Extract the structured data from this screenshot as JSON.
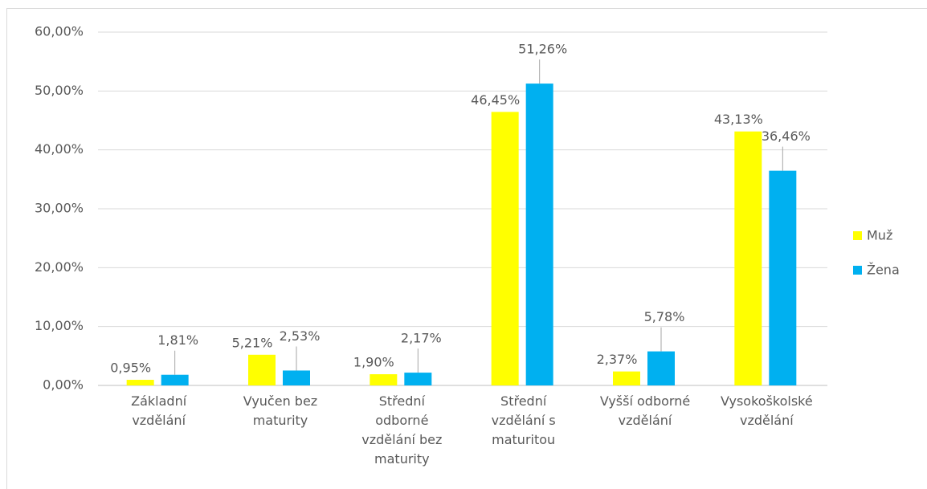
{
  "chart_data": {
    "type": "bar",
    "categories": [
      "Základní vzdělání",
      "Vyučen bez maturity",
      "Střední odborné vzdělání bez maturity",
      "Střední vzdělání s maturitou",
      "Vyšší odborné vzdělání",
      "Vysokoškolské vzdělání"
    ],
    "series": [
      {
        "name": "Muž",
        "color": "#ffff00",
        "values": [
          0.95,
          5.21,
          1.9,
          46.45,
          2.37,
          43.13
        ],
        "value_labels": [
          "0,95%",
          "5,21%",
          "1,90%",
          "46,45%",
          "2,37%",
          "43,13%"
        ]
      },
      {
        "name": "Žena",
        "color": "#00b0f0",
        "values": [
          1.81,
          2.53,
          2.17,
          51.26,
          5.78,
          36.46
        ],
        "value_labels": [
          "1,81%",
          "2,53%",
          "2,17%",
          "51,26%",
          "5,78%",
          "36,46%"
        ]
      }
    ],
    "ylim": [
      0,
      60
    ],
    "yticks": [
      {
        "value": 0,
        "label": "0,00%"
      },
      {
        "value": 10,
        "label": "10,00%"
      },
      {
        "value": 20,
        "label": "20,00%"
      },
      {
        "value": 30,
        "label": "30,00%"
      },
      {
        "value": 40,
        "label": "40,00%"
      },
      {
        "value": 50,
        "label": "50,00%"
      },
      {
        "value": 60,
        "label": "60,00%"
      }
    ],
    "grid": true,
    "legend": "right"
  }
}
